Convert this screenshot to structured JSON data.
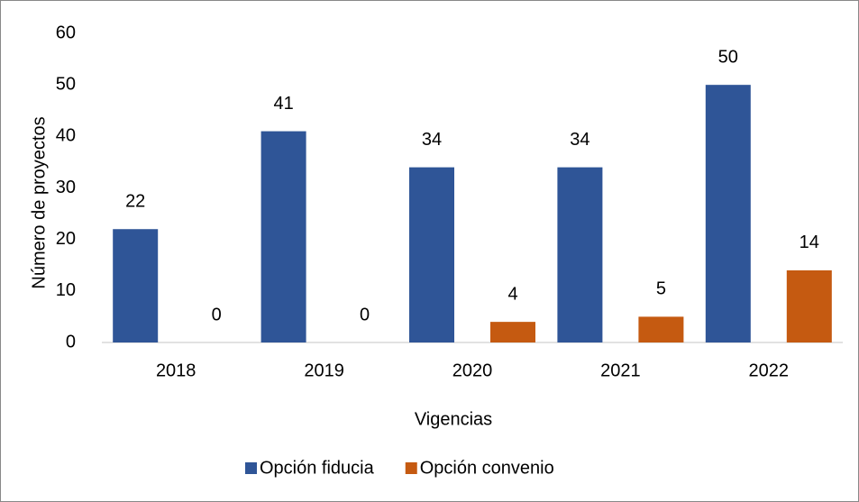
{
  "chart_data": {
    "type": "bar",
    "categories": [
      "2018",
      "2019",
      "2020",
      "2021",
      "2022"
    ],
    "series": [
      {
        "name": "Opción fiducia",
        "color": "#2f5597",
        "values": [
          22,
          41,
          34,
          34,
          50
        ]
      },
      {
        "name": "Opción convenio",
        "color": "#c55a11",
        "values": [
          0,
          0,
          4,
          5,
          14
        ]
      }
    ],
    "xlabel": "Vigencias",
    "ylabel": "Número de proyectos",
    "ylim": [
      0,
      60
    ],
    "yticks": [
      0,
      10,
      20,
      30,
      40,
      50,
      60
    ],
    "legend": "bottom",
    "data_labels": true
  }
}
